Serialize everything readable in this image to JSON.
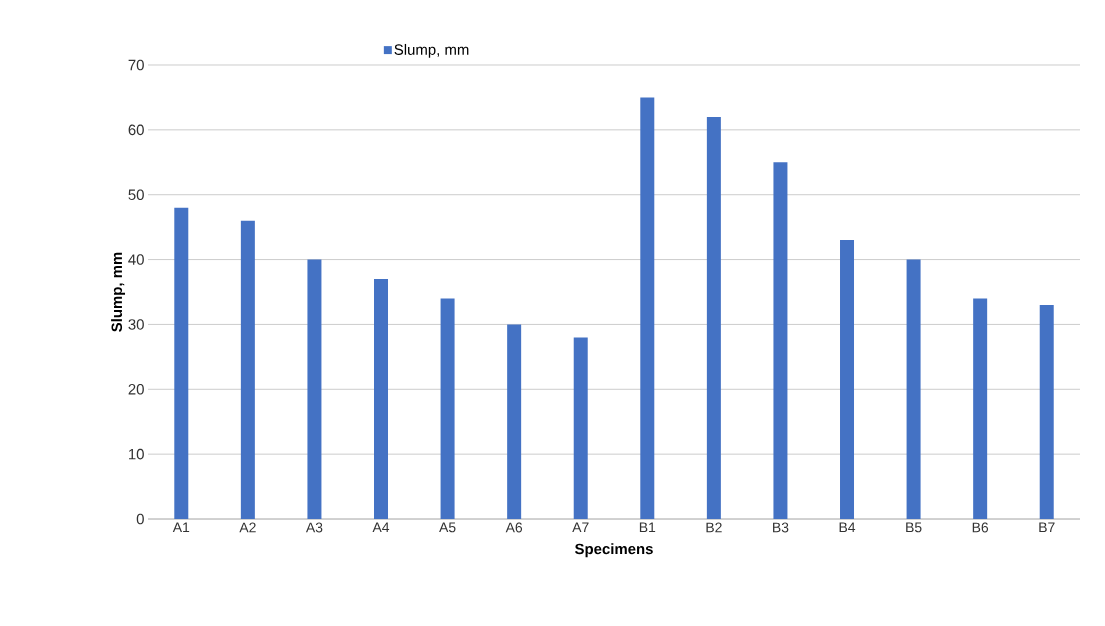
{
  "chart_data": {
    "type": "bar",
    "xlabel": "Specimens",
    "ylabel": "Slump, mm",
    "categories": [
      "A1",
      "A2",
      "A3",
      "A4",
      "A5",
      "A6",
      "A7",
      "B1",
      "B2",
      "B3",
      "B4",
      "B5",
      "B6",
      "B7"
    ],
    "series": [
      {
        "name": "Slump, mm",
        "color": "#4472c4",
        "values": [
          48,
          46,
          40,
          37,
          34,
          30,
          28,
          65,
          62,
          55,
          43,
          40,
          34,
          33
        ]
      }
    ],
    "ylim": [
      0,
      70
    ],
    "yticks": [
      0,
      10,
      20,
      30,
      40,
      50,
      60,
      70
    ],
    "grid": "y",
    "legend": "top"
  }
}
